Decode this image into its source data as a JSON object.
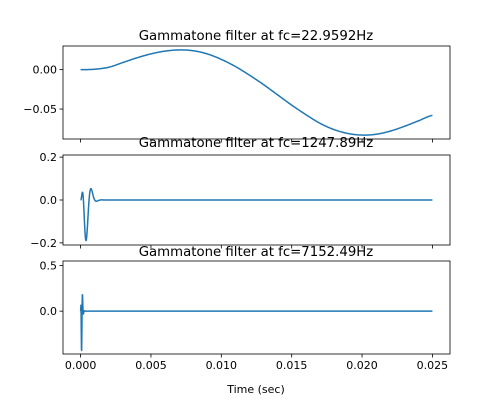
{
  "chart_data": [
    {
      "type": "line",
      "title": "Gammatone filter at fc=22.9592Hz",
      "fc": 22.9592,
      "xlim": [
        -0.00125,
        0.02625
      ],
      "ylim": [
        -0.088,
        0.03
      ],
      "yticks": [
        0.0,
        -0.05
      ],
      "ytick_labels": [
        "0.00",
        "−0.05"
      ],
      "xticks": [
        0,
        0.005,
        0.01,
        0.015,
        0.02,
        0.025
      ],
      "xtick_labels": [
        "",
        "",
        "",
        "",
        "",
        ""
      ],
      "series_color": "#1f77b4",
      "x": [
        0,
        0.001,
        0.002,
        0.003,
        0.004,
        0.005,
        0.006,
        0.007,
        0.008,
        0.009,
        0.01,
        0.011,
        0.012,
        0.013,
        0.014,
        0.015,
        0.016,
        0.017,
        0.018,
        0.019,
        0.02,
        0.021,
        0.022,
        0.023,
        0.024,
        0.025
      ],
      "y": [
        0.0,
        0.0005,
        0.003,
        0.009,
        0.015,
        0.02,
        0.0235,
        0.025,
        0.024,
        0.02,
        0.013,
        0.004,
        -0.007,
        -0.019,
        -0.032,
        -0.045,
        -0.057,
        -0.068,
        -0.076,
        -0.081,
        -0.083,
        -0.082,
        -0.078,
        -0.072,
        -0.065,
        -0.058
      ]
    },
    {
      "type": "line",
      "title": "Gammatone filter at fc=1247.89Hz",
      "fc": 1247.89,
      "xlim": [
        -0.00125,
        0.02625
      ],
      "ylim": [
        -0.21,
        0.21
      ],
      "yticks": [
        0.2,
        0.0,
        -0.2
      ],
      "ytick_labels": [
        "0.2",
        "0.0",
        "−0.2"
      ],
      "xticks": [
        0,
        0.005,
        0.01,
        0.015,
        0.02,
        0.025
      ],
      "xtick_labels": [
        "",
        "",
        "",
        "",
        "",
        ""
      ],
      "series_color": "#1f77b4",
      "x_range": [
        0,
        0.025
      ],
      "samples": 2000,
      "amplitude": 0.195,
      "envelope_order": 4,
      "envelope_decay": 1400
    },
    {
      "type": "line",
      "title": "Gammatone filter at fc=7152.49Hz",
      "fc": 7152.49,
      "xlim": [
        -0.00125,
        0.02625
      ],
      "ylim": [
        -0.47,
        0.55
      ],
      "yticks": [
        0.5,
        0.0
      ],
      "ytick_labels": [
        "0.5",
        "0.0"
      ],
      "xticks": [
        0,
        0.005,
        0.01,
        0.015,
        0.02,
        0.025
      ],
      "xtick_labels": [
        "0.000",
        "0.005",
        "0.010",
        "0.015",
        "0.020",
        "0.025"
      ],
      "xlabel": "Time (sec)",
      "series_color": "#1f77b4",
      "x_range": [
        0,
        0.025
      ],
      "samples": 2000,
      "amplitude": 0.45,
      "envelope_order": 4,
      "envelope_decay": 7000
    }
  ]
}
